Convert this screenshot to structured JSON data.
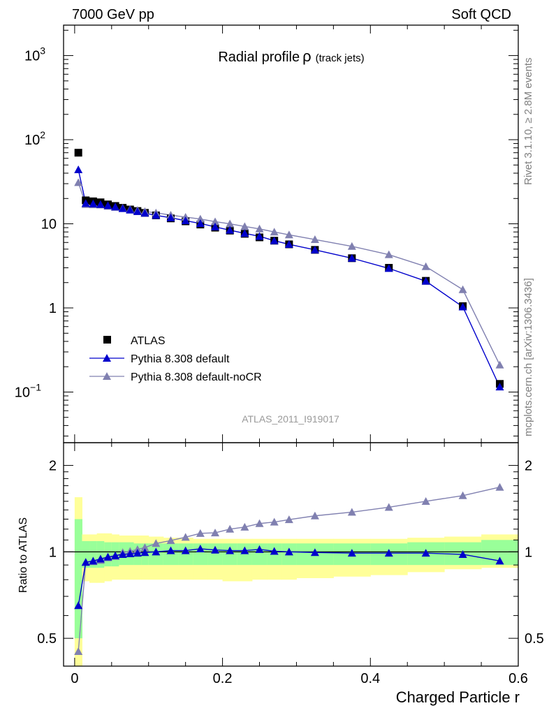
{
  "header": {
    "left": "7000 GeV pp",
    "right": "Soft QCD"
  },
  "side_labels": {
    "rivet": "Rivet 3.1.10, ≥ 2.8M events",
    "mcplots": "mcplots.cern.ch [arXiv:1306.3436]"
  },
  "watermark": "ATLAS_2011_I919017",
  "colors": {
    "atlas": "#000000",
    "pythia_default": "#0000cc",
    "pythia_nocr": "#8080b0",
    "band_inner": "#99ff99",
    "band_outer": "#ffff99"
  },
  "chart_data": [
    {
      "type": "scatter",
      "title_main": "Radial profile",
      "title_symbol": "ρ",
      "title_suffix": "(track jets)",
      "xlabel": "Charged Particle r",
      "ylabel": "",
      "yscale": "log",
      "xlim": [
        -0.015,
        0.6
      ],
      "ylim": [
        0.025,
        2300
      ],
      "x_ticks": [
        "0",
        "0.2",
        "0.4",
        "0.6"
      ],
      "y_ticks": [
        {
          "value": 1000,
          "base": "10",
          "exp": "3"
        },
        {
          "value": 100,
          "base": "10",
          "exp": "2"
        },
        {
          "value": 10,
          "base": "10",
          "exp": ""
        },
        {
          "value": 1,
          "base": "1",
          "exp": ""
        },
        {
          "value": 0.1,
          "base": "10",
          "exp": "−1"
        }
      ],
      "legend": {
        "placement": "lower-left",
        "entries": [
          "ATLAS",
          "Pythia 8.308 default",
          "Pythia 8.308 default-noCR"
        ]
      },
      "x": [
        0.005,
        0.015,
        0.025,
        0.035,
        0.045,
        0.055,
        0.065,
        0.075,
        0.085,
        0.095,
        0.11,
        0.13,
        0.15,
        0.17,
        0.19,
        0.21,
        0.23,
        0.25,
        0.27,
        0.29,
        0.325,
        0.375,
        0.425,
        0.475,
        0.525,
        0.575
      ],
      "series": [
        {
          "name": "ATLAS",
          "marker": "square",
          "values": [
            70,
            19,
            18.5,
            18,
            17,
            16.3,
            15.5,
            14.8,
            14.2,
            13.5,
            12.6,
            11.6,
            10.7,
            9.8,
            9.0,
            8.3,
            7.6,
            6.9,
            6.3,
            5.7,
            4.9,
            3.9,
            3.0,
            2.1,
            1.05,
            0.125
          ]
        },
        {
          "name": "Pythia 8.308 default",
          "marker": "triangle",
          "values": [
            44,
            17.5,
            17.3,
            17,
            16.5,
            15.9,
            15.2,
            14.6,
            14.0,
            13.4,
            12.6,
            11.8,
            10.9,
            10.1,
            9.2,
            8.4,
            7.7,
            7.1,
            6.3,
            5.7,
            4.9,
            3.9,
            2.95,
            2.08,
            1.03,
            0.115
          ]
        },
        {
          "name": "Pythia 8.308 default-noCR",
          "marker": "triangle",
          "values": [
            31,
            17,
            16.9,
            16.8,
            16.2,
            15.7,
            15.4,
            14.9,
            14.5,
            14.0,
            13.5,
            12.7,
            12.0,
            11.4,
            10.6,
            10.0,
            9.3,
            8.7,
            8.0,
            7.4,
            6.5,
            5.4,
            4.3,
            3.1,
            1.65,
            0.21
          ]
        }
      ]
    },
    {
      "type": "scatter",
      "title": "",
      "xlabel": "Charged Particle r",
      "ylabel": "Ratio to ATLAS",
      "yscale": "log",
      "xlim": [
        -0.015,
        0.6
      ],
      "ylim": [
        0.4,
        2.4
      ],
      "x_ticks": [
        "0",
        "0.2",
        "0.4",
        "0.6"
      ],
      "y_ticks": [
        "0.5",
        "1",
        "2"
      ],
      "y_tick_values": [
        0.5,
        1,
        2
      ],
      "bands": {
        "edges": [
          0,
          0.01,
          0.02,
          0.03,
          0.04,
          0.05,
          0.06,
          0.07,
          0.08,
          0.09,
          0.1,
          0.12,
          0.14,
          0.16,
          0.18,
          0.2,
          0.22,
          0.24,
          0.26,
          0.28,
          0.3,
          0.35,
          0.4,
          0.45,
          0.5,
          0.55,
          0.6
        ],
        "inner_low": [
          0.5,
          0.88,
          0.88,
          0.88,
          0.89,
          0.89,
          0.9,
          0.9,
          0.9,
          0.9,
          0.9,
          0.9,
          0.9,
          0.9,
          0.9,
          0.9,
          0.9,
          0.9,
          0.9,
          0.9,
          0.9,
          0.9,
          0.9,
          0.9,
          0.9,
          0.9
        ],
        "inner_high": [
          1.3,
          1.09,
          1.09,
          1.09,
          1.08,
          1.08,
          1.08,
          1.08,
          1.07,
          1.07,
          1.07,
          1.07,
          1.07,
          1.07,
          1.07,
          1.07,
          1.07,
          1.07,
          1.07,
          1.07,
          1.07,
          1.07,
          1.07,
          1.08,
          1.08,
          1.1
        ],
        "outer_low": [
          0.38,
          0.79,
          0.78,
          0.78,
          0.79,
          0.8,
          0.8,
          0.8,
          0.8,
          0.8,
          0.8,
          0.8,
          0.8,
          0.8,
          0.8,
          0.79,
          0.79,
          0.8,
          0.8,
          0.8,
          0.81,
          0.82,
          0.83,
          0.85,
          0.87,
          0.88
        ],
        "outer_high": [
          1.55,
          1.15,
          1.15,
          1.16,
          1.16,
          1.15,
          1.14,
          1.14,
          1.14,
          1.14,
          1.13,
          1.12,
          1.12,
          1.11,
          1.11,
          1.11,
          1.11,
          1.11,
          1.11,
          1.11,
          1.11,
          1.11,
          1.11,
          1.12,
          1.13,
          1.15
        ]
      },
      "x": [
        0.005,
        0.015,
        0.025,
        0.035,
        0.045,
        0.055,
        0.065,
        0.075,
        0.085,
        0.095,
        0.11,
        0.13,
        0.15,
        0.17,
        0.19,
        0.21,
        0.23,
        0.25,
        0.27,
        0.29,
        0.325,
        0.375,
        0.425,
        0.475,
        0.525,
        0.575
      ],
      "series": [
        {
          "name": "Pythia 8.308 default",
          "values": [
            0.65,
            0.92,
            0.93,
            0.945,
            0.96,
            0.97,
            0.98,
            0.985,
            0.99,
            0.995,
            1.0,
            1.01,
            1.01,
            1.025,
            1.015,
            1.01,
            1.01,
            1.02,
            1.005,
            1.0,
            0.995,
            0.99,
            0.99,
            0.99,
            0.98,
            0.93
          ]
        },
        {
          "name": "Pythia 8.308 default-noCR",
          "values": [
            0.45,
            0.92,
            0.925,
            0.935,
            0.955,
            0.965,
            0.995,
            1.005,
            1.02,
            1.035,
            1.07,
            1.095,
            1.125,
            1.16,
            1.165,
            1.2,
            1.22,
            1.255,
            1.27,
            1.295,
            1.335,
            1.375,
            1.43,
            1.5,
            1.57,
            1.68
          ]
        }
      ]
    }
  ]
}
